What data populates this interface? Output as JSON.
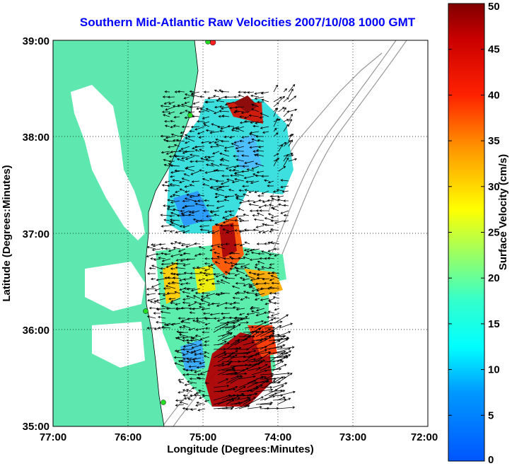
{
  "title": "Southern Mid-Atlantic Raw Velocities 2007/10/08 1000 GMT",
  "axes": {
    "xlabel": "Longitude (Degrees:Minutes)",
    "ylabel": "Latitude (Degrees:Minutes)",
    "x_ticks": [
      "77:00",
      "76:00",
      "75:00",
      "74:00",
      "73:00",
      "72:00"
    ],
    "y_ticks": [
      "39:00",
      "38:00",
      "37:00",
      "36:00",
      "35:00"
    ],
    "xlim": [
      -77,
      -72
    ],
    "ylim": [
      35,
      39
    ],
    "grid": true
  },
  "colorbar": {
    "label": "Surface Velocity (cm/s)",
    "ticks": [
      "50",
      "45",
      "40",
      "35",
      "30",
      "25",
      "20",
      "15",
      "10",
      "5",
      "0"
    ],
    "range": [
      0,
      50
    ]
  },
  "colors": {
    "land": "#5ee8b0",
    "title": "#0000ff",
    "station": "#22dd22",
    "station_alt": "#ff2222"
  }
}
